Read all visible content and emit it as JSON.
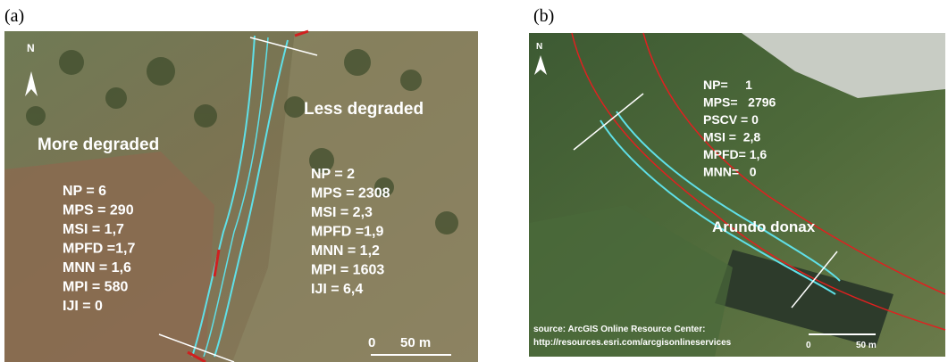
{
  "panels": [
    {
      "label": "(a)",
      "north": "N",
      "regions": [
        "More degraded",
        "Less degraded"
      ],
      "stats_left": [
        "NP = 6",
        "MPS = 290",
        "MSI = 1,7",
        "MPFD =1,7",
        "MNN = 1,6",
        "MPI = 580",
        "IJI = 0"
      ],
      "stats_right": [
        "NP = 2",
        "MPS = 2308",
        "MSI = 2,3",
        "MPFD =1,9",
        "MNN = 1,2",
        "MPI = 1603",
        "IJI = 6,4"
      ],
      "scale": [
        "0",
        "50 m"
      ]
    },
    {
      "label": "(b)",
      "north": "N",
      "species": "Arundo donax",
      "stats": [
        "NP=     1",
        "MPS=   2796",
        "PSCV = 0",
        "MSI =  2,8",
        "MPFD= 1,6",
        "MNN=   0"
      ],
      "source": [
        "source: ArcGIS Online Resource Center:",
        "http://resources.esri.com/arcgisonlineservices"
      ],
      "scale": [
        "0",
        "50 m"
      ]
    }
  ]
}
